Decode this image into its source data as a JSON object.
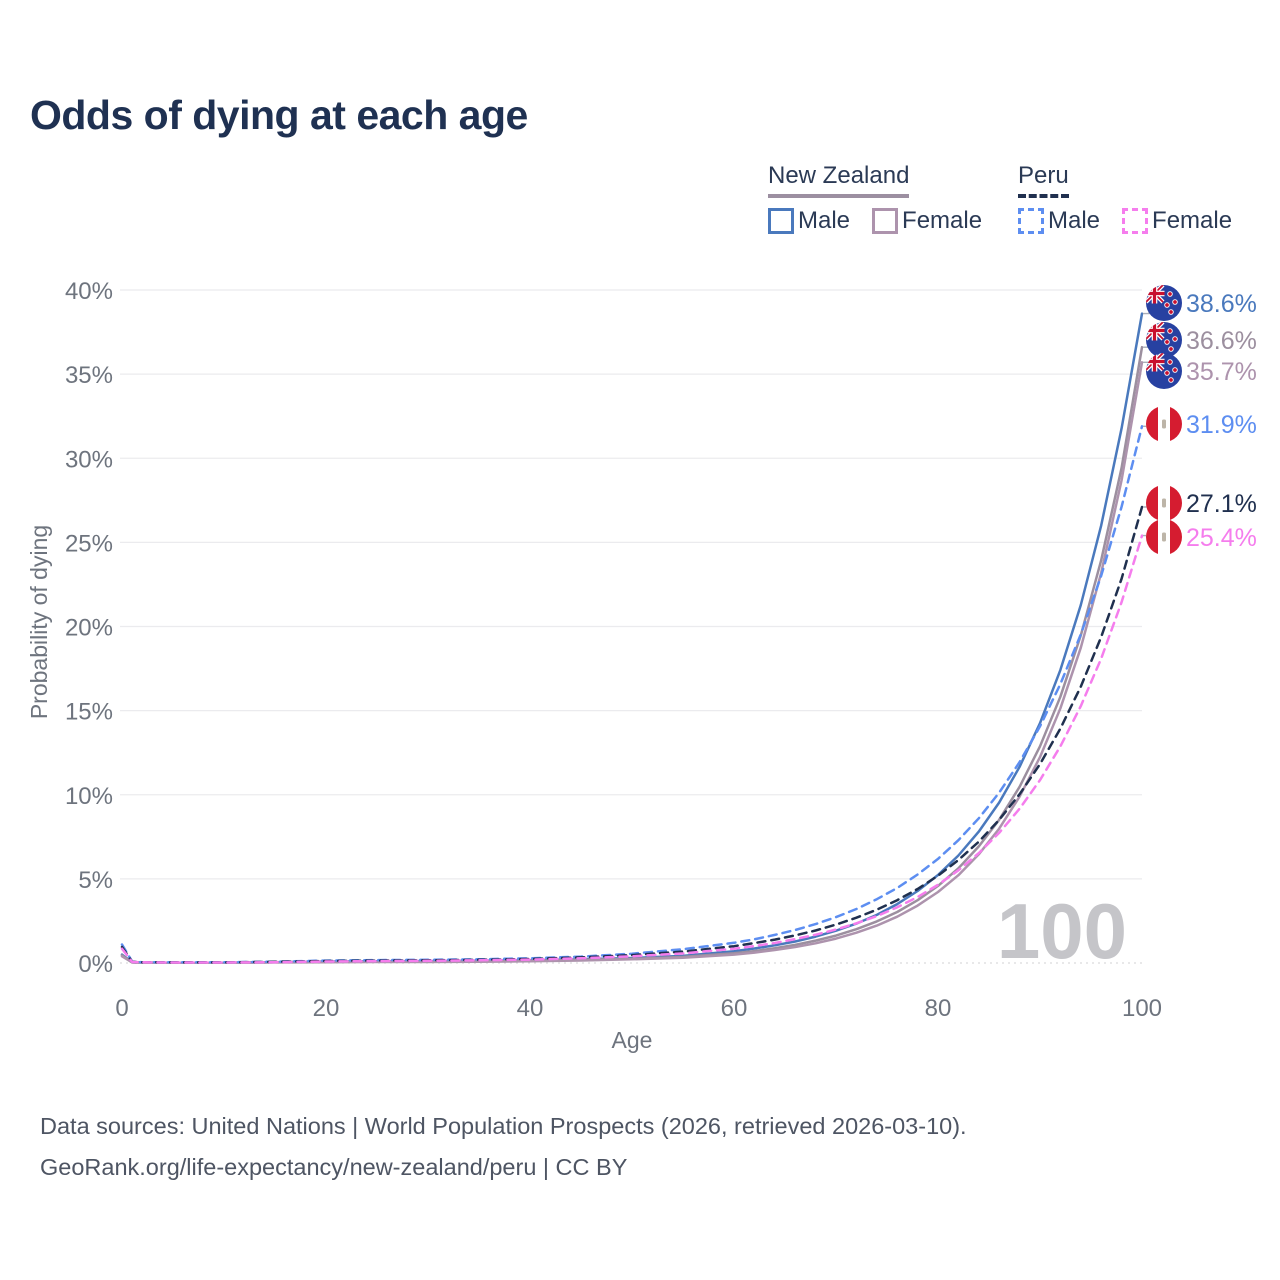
{
  "title": "Odds of dying at each age",
  "watermark": "100",
  "legend": {
    "groups": [
      {
        "label": "New Zealand",
        "line_style": "solid",
        "underline_color": "#9c8fa1",
        "items": [
          {
            "label": "Male",
            "color": "#4a79bd"
          },
          {
            "label": "Female",
            "color": "#ad93ad"
          }
        ]
      },
      {
        "label": "Peru",
        "line_style": "dashed",
        "underline_color": "#20304f",
        "items": [
          {
            "label": "Male",
            "color": "#5d8ef1"
          },
          {
            "label": "Female",
            "color": "#f57ded"
          }
        ]
      }
    ]
  },
  "footer": {
    "line1": "Data sources: United Nations | World Population Prospects (2026, retrieved 2026-03-10).",
    "line2": "GeoRank.org/life-expectancy/new-zealand/peru | CC BY"
  },
  "chart_data": {
    "type": "line",
    "title": "Odds of dying at each age",
    "xlabel": "Age",
    "ylabel": "Probability of dying",
    "xlim": [
      0,
      100
    ],
    "ylim": [
      0,
      40
    ],
    "x_ticks": [
      0,
      20,
      40,
      60,
      80,
      100
    ],
    "y_ticks": [
      "0%",
      "5%",
      "10%",
      "15%",
      "20%",
      "25%",
      "30%",
      "35%",
      "40%"
    ],
    "grid": true,
    "legend_position": "top-right",
    "x": [
      0,
      1,
      2,
      5,
      10,
      15,
      20,
      25,
      30,
      35,
      40,
      45,
      50,
      55,
      60,
      62,
      64,
      66,
      68,
      70,
      72,
      74,
      76,
      78,
      80,
      82,
      84,
      86,
      88,
      90,
      92,
      94,
      96,
      98,
      100
    ],
    "series": [
      {
        "id": "nz-male",
        "name": "New Zealand Male",
        "country": "New Zealand",
        "sex": "Male",
        "color": "#4a79bd",
        "dash": false,
        "end_label": "38.6%",
        "end_value": 38.6,
        "values": [
          0.5,
          0.04,
          0.03,
          0.02,
          0.02,
          0.05,
          0.09,
          0.1,
          0.11,
          0.13,
          0.16,
          0.22,
          0.3,
          0.42,
          0.7,
          0.86,
          1.05,
          1.28,
          1.57,
          1.92,
          2.34,
          2.86,
          3.5,
          4.28,
          5.23,
          6.39,
          7.81,
          9.54,
          11.66,
          14.25,
          17.42,
          21.28,
          26.01,
          31.78,
          38.6
        ]
      },
      {
        "id": "nz-total",
        "name": "New Zealand Both sexes",
        "country": "New Zealand",
        "sex": "Both",
        "color": "#9c8f9f",
        "dash": false,
        "end_label": "36.6%",
        "end_value": 36.6,
        "values": [
          0.45,
          0.035,
          0.025,
          0.015,
          0.015,
          0.04,
          0.07,
          0.08,
          0.08,
          0.1,
          0.13,
          0.19,
          0.25,
          0.36,
          0.58,
          0.71,
          0.88,
          1.08,
          1.33,
          1.63,
          2.01,
          2.47,
          3.03,
          3.73,
          4.58,
          5.63,
          6.93,
          8.52,
          10.47,
          12.88,
          15.83,
          19.47,
          23.94,
          29.43,
          36.6
        ]
      },
      {
        "id": "nz-female",
        "name": "New Zealand Female",
        "country": "New Zealand",
        "sex": "Female",
        "color": "#ad93ad",
        "dash": false,
        "end_label": "35.7%",
        "end_value": 35.7,
        "values": [
          0.4,
          0.03,
          0.02,
          0.012,
          0.012,
          0.03,
          0.05,
          0.06,
          0.06,
          0.08,
          0.1,
          0.15,
          0.22,
          0.31,
          0.5,
          0.62,
          0.77,
          0.95,
          1.17,
          1.45,
          1.8,
          2.22,
          2.75,
          3.41,
          4.22,
          5.22,
          6.46,
          7.99,
          9.89,
          12.24,
          15.14,
          18.74,
          23.19,
          28.7,
          35.7
        ]
      },
      {
        "id": "peru-male",
        "name": "Peru Male",
        "country": "Peru",
        "sex": "Male",
        "color": "#5d8ef1",
        "dash": true,
        "end_label": "31.9%",
        "end_value": 31.9,
        "values": [
          1.1,
          0.08,
          0.05,
          0.04,
          0.04,
          0.08,
          0.14,
          0.17,
          0.19,
          0.22,
          0.28,
          0.38,
          0.55,
          0.82,
          1.2,
          1.41,
          1.67,
          1.96,
          2.31,
          2.73,
          3.21,
          3.79,
          4.46,
          5.26,
          6.19,
          7.3,
          8.6,
          10.13,
          11.94,
          14.07,
          16.58,
          19.53,
          23.02,
          27.12,
          31.9
        ]
      },
      {
        "id": "peru-total",
        "name": "Peru Both sexes",
        "country": "Peru",
        "sex": "Both",
        "color": "#20304f",
        "dash": true,
        "end_label": "27.1%",
        "end_value": 27.1,
        "values": [
          0.95,
          0.07,
          0.045,
          0.035,
          0.035,
          0.07,
          0.12,
          0.14,
          0.16,
          0.19,
          0.24,
          0.33,
          0.47,
          0.68,
          1.0,
          1.18,
          1.39,
          1.64,
          1.93,
          2.28,
          2.69,
          3.17,
          3.73,
          4.4,
          5.19,
          6.12,
          7.21,
          8.51,
          10.03,
          11.82,
          13.94,
          16.43,
          19.38,
          22.84,
          27.1
        ]
      },
      {
        "id": "peru-female",
        "name": "Peru Female",
        "country": "Peru",
        "sex": "Female",
        "color": "#f57ded",
        "dash": true,
        "end_label": "25.4%",
        "end_value": 25.4,
        "values": [
          0.85,
          0.06,
          0.04,
          0.03,
          0.03,
          0.05,
          0.09,
          0.11,
          0.13,
          0.16,
          0.2,
          0.28,
          0.4,
          0.57,
          0.85,
          1.01,
          1.19,
          1.42,
          1.68,
          1.99,
          2.36,
          2.79,
          3.31,
          3.92,
          4.65,
          5.51,
          6.53,
          7.74,
          9.17,
          10.87,
          12.88,
          15.27,
          18.1,
          21.45,
          25.4
        ]
      }
    ]
  }
}
